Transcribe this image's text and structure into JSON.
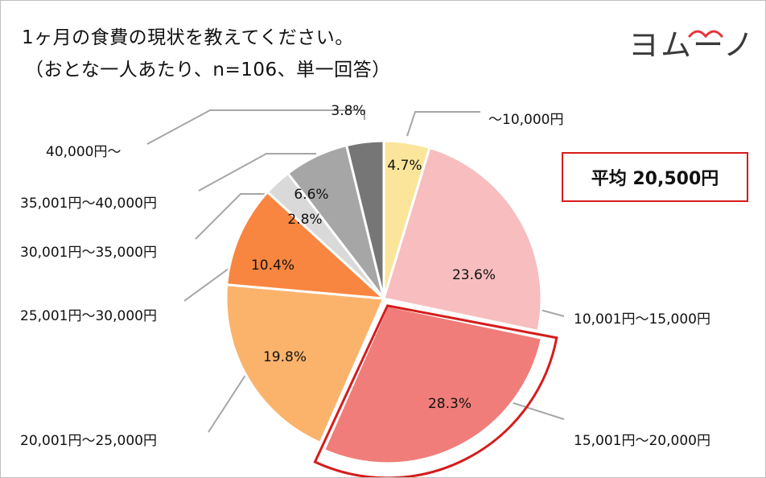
{
  "title_line1": "1ヶ月の食費の現状を教えてください。",
  "title_line2": "（おとな一人あたり、n=106、単一回答）",
  "logo": {
    "text": "ヨムーノ",
    "accent_color": "#e8333a"
  },
  "average": {
    "text": "平均 20,500円"
  },
  "highlight_color": "#d61c1c",
  "chart_data": {
    "type": "pie",
    "start": "12 o'clock, clockwise",
    "highlighted_category": "15,001円〜20,000円",
    "categories": [
      "〜10,000円",
      "10,001円〜15,000円",
      "15,001円〜20,000円",
      "20,001円〜25,000円",
      "25,001円〜30,000円",
      "30,001円〜35,000円",
      "35,001円〜40,000円",
      "40,000円〜"
    ],
    "values": [
      4.7,
      23.6,
      28.3,
      19.8,
      10.4,
      2.8,
      6.6,
      3.8
    ],
    "value_labels": [
      "4.7%",
      "23.6%",
      "28.3%",
      "19.8%",
      "10.4%",
      "2.8%",
      "6.6%",
      "3.8%"
    ],
    "colors": [
      "#fbe59a",
      "#f7bdbf",
      "#f07d79",
      "#fbb36c",
      "#f88640",
      "#d9d9d9",
      "#a6a6a6",
      "#767676"
    ]
  }
}
